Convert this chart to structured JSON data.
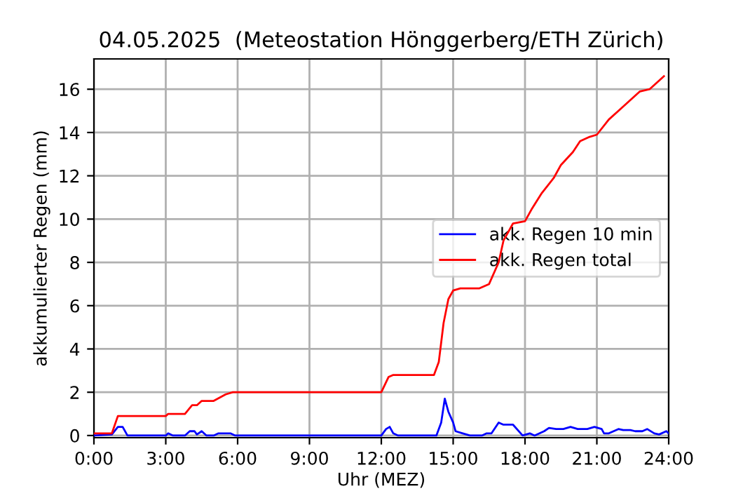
{
  "chart_data": {
    "type": "line",
    "title": "04.05.2025  (Meteostation Hönggerberg/ETH Zürich)",
    "xlabel": "Uhr (MEZ)",
    "ylabel": "akkumulierter Regen (mm)",
    "xlim": [
      0,
      24
    ],
    "ylim": [
      -0.1,
      17.4
    ],
    "xticks": [
      {
        "value": 0,
        "label": "0:00"
      },
      {
        "value": 3,
        "label": "3:00"
      },
      {
        "value": 6,
        "label": "6:00"
      },
      {
        "value": 9,
        "label": "9:00"
      },
      {
        "value": 12,
        "label": "12:00"
      },
      {
        "value": 15,
        "label": "15:00"
      },
      {
        "value": 18,
        "label": "18:00"
      },
      {
        "value": 21,
        "label": "21:00"
      },
      {
        "value": 24,
        "label": "24:00"
      }
    ],
    "yticks": [
      0,
      2,
      4,
      6,
      8,
      10,
      12,
      14,
      16
    ],
    "grid": true,
    "legend": "center right",
    "series": [
      {
        "name": "akk. Regen 10 min",
        "color": "#0000ff",
        "x": [
          0,
          0.75,
          1.0,
          1.2,
          1.4,
          3.0,
          3.1,
          3.3,
          3.8,
          4.0,
          4.2,
          4.3,
          4.5,
          4.7,
          5.0,
          5.2,
          5.7,
          5.9,
          12.0,
          12.2,
          12.35,
          12.5,
          12.7,
          14.3,
          14.5,
          14.65,
          14.8,
          15.0,
          15.1,
          15.4,
          15.7,
          16.2,
          16.4,
          16.6,
          16.9,
          17.1,
          17.5,
          17.9,
          18.2,
          18.4,
          18.8,
          19.0,
          19.3,
          19.6,
          19.9,
          20.2,
          20.6,
          20.9,
          21.2,
          21.3,
          21.5,
          21.9,
          22.1,
          22.4,
          22.6,
          22.9,
          23.1,
          23.4,
          23.6,
          23.9,
          24.0
        ],
        "values": [
          0,
          0.05,
          0.4,
          0.4,
          0,
          0,
          0.1,
          0,
          0,
          0.2,
          0.2,
          0.05,
          0.2,
          0,
          0,
          0.1,
          0.1,
          0,
          0,
          0.3,
          0.4,
          0.1,
          0,
          0,
          0.6,
          1.7,
          1.1,
          0.6,
          0.2,
          0.1,
          0,
          0,
          0.1,
          0.1,
          0.6,
          0.5,
          0.5,
          0,
          0.1,
          0,
          0.2,
          0.35,
          0.3,
          0.3,
          0.4,
          0.3,
          0.3,
          0.4,
          0.3,
          0.1,
          0.1,
          0.3,
          0.25,
          0.25,
          0.2,
          0.2,
          0.3,
          0.1,
          0.05,
          0.2,
          0.1
        ]
      },
      {
        "name": "akk. Regen total",
        "color": "#ff0000",
        "x": [
          0,
          0.75,
          1.0,
          3.0,
          3.1,
          3.8,
          4.1,
          4.3,
          4.5,
          5.0,
          5.5,
          5.8,
          12.0,
          12.3,
          12.5,
          14.2,
          14.4,
          14.6,
          14.8,
          15.0,
          15.3,
          16.1,
          16.5,
          16.9,
          17.1,
          17.5,
          18.0,
          18.3,
          18.7,
          19.2,
          19.5,
          20.0,
          20.3,
          20.7,
          21.0,
          21.5,
          22.0,
          22.5,
          22.8,
          23.2,
          23.5,
          23.8
        ],
        "values": [
          0.1,
          0.1,
          0.9,
          0.9,
          1.0,
          1.0,
          1.4,
          1.4,
          1.6,
          1.6,
          1.9,
          2.0,
          2.0,
          2.7,
          2.8,
          2.8,
          3.4,
          5.2,
          6.3,
          6.7,
          6.8,
          6.8,
          7.0,
          8.0,
          9.0,
          9.8,
          9.9,
          10.5,
          11.2,
          11.9,
          12.5,
          13.1,
          13.6,
          13.8,
          13.9,
          14.6,
          15.1,
          15.6,
          15.9,
          16.0,
          16.3,
          16.6
        ]
      }
    ]
  }
}
